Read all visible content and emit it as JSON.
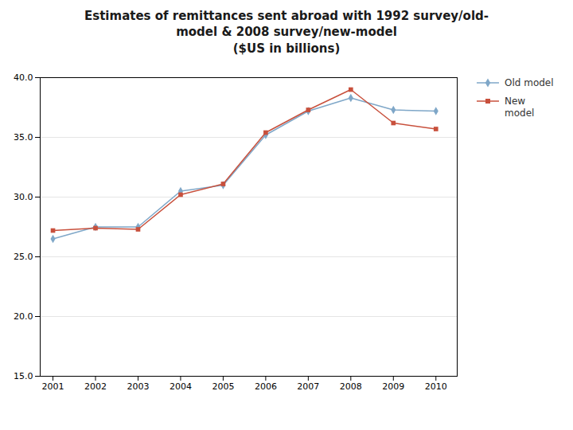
{
  "chart_data": {
    "type": "line",
    "title": "Estimates of remittances sent abroad with 1992 survey/old-\nmodel & 2008 survey/new-model\n($US in billions)",
    "x": [
      2001,
      2002,
      2003,
      2004,
      2005,
      2006,
      2007,
      2008,
      2009,
      2010
    ],
    "series": [
      {
        "name": "Old model",
        "color": "#7fa7c8",
        "marker": "diamond",
        "values": [
          26.5,
          27.5,
          27.5,
          30.5,
          31.0,
          35.2,
          37.2,
          38.3,
          37.3,
          37.2
        ]
      },
      {
        "name": "New\nmodel",
        "color": "#c8503c",
        "marker": "square",
        "values": [
          27.2,
          27.4,
          27.3,
          30.2,
          31.1,
          35.4,
          37.3,
          39.0,
          36.2,
          35.7
        ]
      }
    ],
    "xlim": [
      2000.7,
      2010.5
    ],
    "xticks": [
      2001,
      2002,
      2003,
      2004,
      2005,
      2006,
      2007,
      2008,
      2009,
      2010
    ],
    "ylim": [
      15.0,
      40.0
    ],
    "yticks": [
      {
        "value": 15.0,
        "label": "15.0"
      },
      {
        "value": 20.0,
        "label": "20.0"
      },
      {
        "value": 25.0,
        "label": "25.0"
      },
      {
        "value": 30.0,
        "label": "30.0"
      },
      {
        "value": 35.0,
        "label": "35.0"
      },
      {
        "value": 40.0,
        "label": "40.0"
      }
    ],
    "grid": true,
    "legend": "right"
  }
}
